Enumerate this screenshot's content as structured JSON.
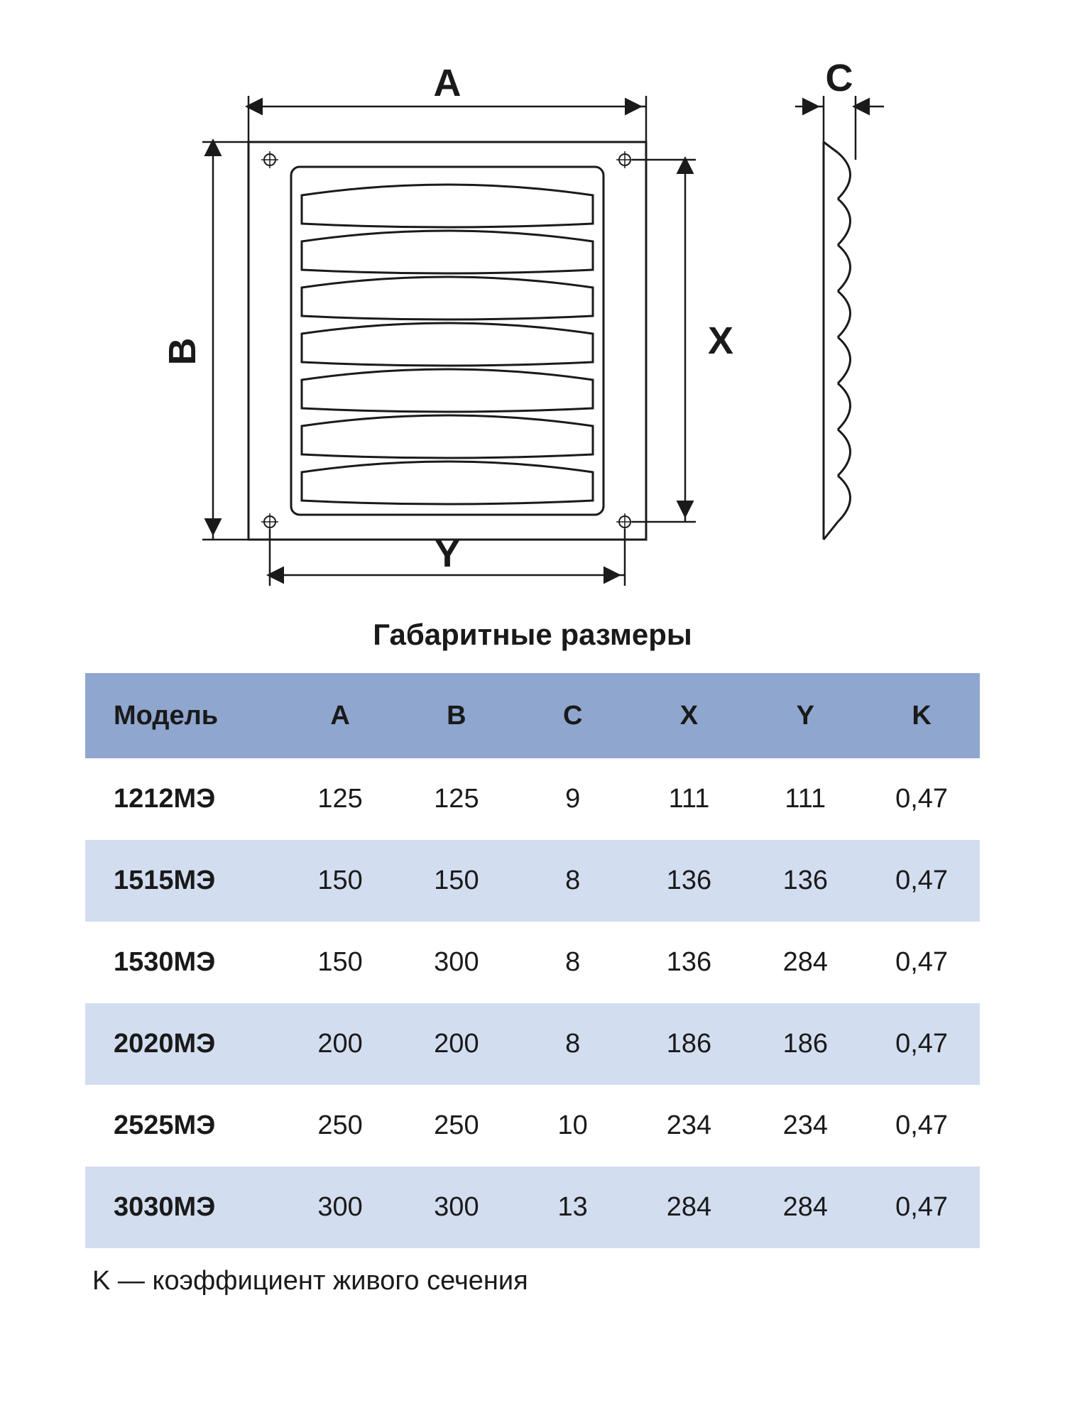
{
  "diagram": {
    "labels": {
      "A": "A",
      "B": "B",
      "C": "C",
      "X": "X",
      "Y": "Y"
    },
    "stroke_color": "#1a1a1a",
    "stroke_width_main": 3,
    "stroke_width_thin": 2,
    "label_fontsize": 54,
    "label_fontweight": "700"
  },
  "title": "Габаритные размеры",
  "table": {
    "header_bg": "#8fa6cf",
    "row_alt_bg": "#d3ddf0",
    "row_bg": "#ffffff",
    "text_color": "#1a1a1a",
    "columns": [
      "Модель",
      "A",
      "B",
      "C",
      "X",
      "Y",
      "K"
    ],
    "rows": [
      [
        "1212МЭ",
        "125",
        "125",
        "9",
        "111",
        "111",
        "0,47"
      ],
      [
        "1515МЭ",
        "150",
        "150",
        "8",
        "136",
        "136",
        "0,47"
      ],
      [
        "1530МЭ",
        "150",
        "300",
        "8",
        "136",
        "284",
        "0,47"
      ],
      [
        "2020МЭ",
        "200",
        "200",
        "8",
        "186",
        "186",
        "0,47"
      ],
      [
        "2525МЭ",
        "250",
        "250",
        "10",
        "234",
        "234",
        "0,47"
      ],
      [
        "3030МЭ",
        "300",
        "300",
        "13",
        "284",
        "284",
        "0,47"
      ]
    ]
  },
  "footnote": "K — коэффициент живого сечения"
}
